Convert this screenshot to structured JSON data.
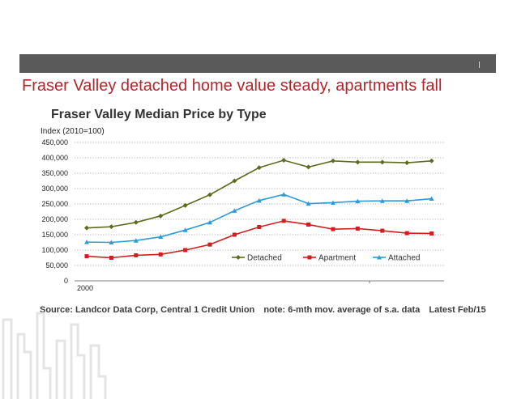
{
  "slide": {
    "title": "Fraser Valley detached home value steady, apartments fall"
  },
  "source": {
    "text": "Source: Landcor Data Corp, Central 1 Credit Union",
    "note": "note: 6-mth mov. average of s.a. data",
    "latest": "Latest Feb/15"
  },
  "colors": {
    "top_bar": "#5a5a5a",
    "title": "#b5262a",
    "detached": "#5e6b1e",
    "apartment": "#d21e1e",
    "attached": "#2e9bd6"
  },
  "chart_data": {
    "type": "line",
    "title": "Fraser Valley Median Price by Type",
    "ylabel": "Index (2010=100)",
    "ylim": [
      0,
      450000
    ],
    "yticks": [
      0,
      50000,
      100000,
      150000,
      200000,
      250000,
      300000,
      350000,
      400000,
      450000
    ],
    "ytick_labels": [
      "0",
      "50,000",
      "100,000",
      "150,000",
      "200,000",
      "250,000",
      "300,000",
      "350,000",
      "400,000",
      "450,000"
    ],
    "x_tick_labels": [
      "2000"
    ],
    "grid": "horizontal dotted",
    "legend_position": "bottom-right inside plot",
    "series": [
      {
        "name": "Detached",
        "marker": "diamond",
        "values": [
          172000,
          176000,
          190000,
          211000,
          245000,
          280000,
          325000,
          368000,
          392000,
          370000,
          390000,
          386000,
          386000,
          384000,
          390000
        ]
      },
      {
        "name": "Apartment",
        "marker": "square",
        "values": [
          80000,
          75000,
          83000,
          86000,
          100000,
          118000,
          150000,
          175000,
          195000,
          183000,
          168000,
          170000,
          163000,
          155000,
          154000
        ]
      },
      {
        "name": "Attached",
        "marker": "triangle",
        "values": [
          126000,
          125000,
          131000,
          143000,
          165000,
          190000,
          228000,
          261000,
          281000,
          251000,
          254000,
          259000,
          260000,
          260000,
          267000
        ]
      }
    ]
  }
}
